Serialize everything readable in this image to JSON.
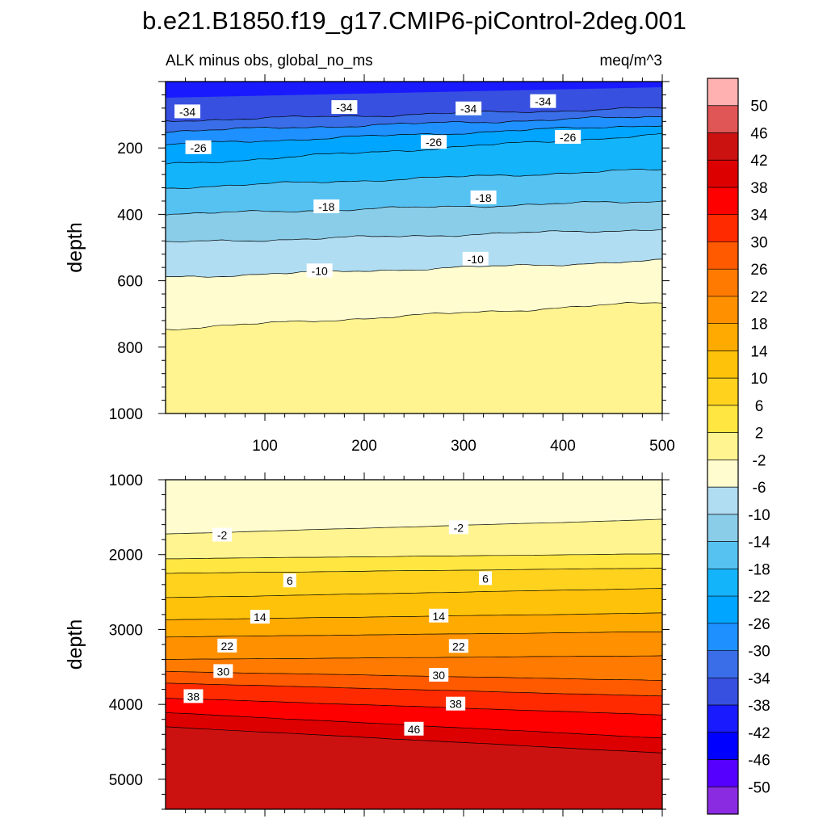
{
  "chart_data": {
    "type": "heatmap",
    "title": "b.e21.B1850.f19_g17.CMIP6-piControl-2deg.001",
    "subtitle_left": "ALK minus obs, global_no_ms",
    "subtitle_right": "meq/m^3",
    "x_range": [
      0,
      500
    ],
    "x_ticks": [
      "100",
      "200",
      "300",
      "400",
      "500"
    ],
    "colorbar": {
      "levels": [
        -50,
        -46,
        -42,
        -38,
        -34,
        -30,
        -26,
        -22,
        -18,
        -14,
        -10,
        -6,
        -2,
        2,
        6,
        10,
        14,
        18,
        22,
        26,
        30,
        34,
        38,
        42,
        46,
        50
      ],
      "labels": [
        "50",
        "46",
        "42",
        "38",
        "34",
        "30",
        "26",
        "22",
        "18",
        "14",
        "10",
        "6",
        "2",
        "-2",
        "-6",
        "-10",
        "-14",
        "-18",
        "-22",
        "-26",
        "-30",
        "-34",
        "-38",
        "-42",
        "-46",
        "-50"
      ],
      "colors": [
        "#8a2be2",
        "#5500ff",
        "#0000ff",
        "#1a1aff",
        "#3750e0",
        "#3a6ee8",
        "#1e90ff",
        "#00a5ff",
        "#14b4fa",
        "#56c2f2",
        "#8acde9",
        "#b0ddf2",
        "#fffdd0",
        "#fff48f",
        "#ffe640",
        "#ffd21e",
        "#ffc20a",
        "#ffaa00",
        "#ff9100",
        "#ff7a00",
        "#ff5a00",
        "#ff2a00",
        "#ff0000",
        "#dd0000",
        "#cc1111",
        "#e05555",
        "#ffb0b0"
      ]
    },
    "panels": [
      {
        "name": "upper",
        "ylabel": "depth",
        "y_range": [
          0,
          1000
        ],
        "y_ticks": [
          "200",
          "400",
          "600",
          "800",
          "1000"
        ],
        "contours": [
          {
            "level": -34,
            "depth_at_0": 118,
            "depth_at_500": 80
          },
          {
            "level": -30,
            "depth_at_0": 150,
            "depth_at_500": 105
          },
          {
            "level": -26,
            "depth_at_0": 190,
            "depth_at_500": 130
          },
          {
            "level": -22,
            "depth_at_0": 250,
            "depth_at_500": 160
          },
          {
            "level": -18,
            "depth_at_0": 320,
            "depth_at_500": 265
          },
          {
            "level": -14,
            "depth_at_0": 400,
            "depth_at_500": 360
          },
          {
            "level": -10,
            "depth_at_0": 485,
            "depth_at_500": 445
          },
          {
            "level": -6,
            "depth_at_0": 590,
            "depth_at_500": 540
          },
          {
            "level": -2,
            "depth_at_0": 745,
            "depth_at_500": 665
          }
        ],
        "contour_labels": [
          {
            "text": "-34",
            "x": 22,
            "depth": 91
          },
          {
            "text": "-34",
            "x": 180,
            "depth": 78
          },
          {
            "text": "-34",
            "x": 305,
            "depth": 82
          },
          {
            "text": "-34",
            "x": 380,
            "depth": 60
          },
          {
            "text": "-26",
            "x": 33,
            "depth": 199
          },
          {
            "text": "-26",
            "x": 270,
            "depth": 183
          },
          {
            "text": "-26",
            "x": 405,
            "depth": 168
          },
          {
            "text": "-18",
            "x": 162,
            "depth": 377
          },
          {
            "text": "-18",
            "x": 320,
            "depth": 350
          },
          {
            "text": "-10",
            "x": 155,
            "depth": 570
          },
          {
            "text": "-10",
            "x": 312,
            "depth": 535
          }
        ]
      },
      {
        "name": "lower",
        "ylabel": "depth",
        "y_range": [
          1000,
          5400
        ],
        "y_ticks": [
          "1000",
          "2000",
          "3000",
          "4000",
          "5000"
        ],
        "contours": [
          {
            "level": -2,
            "depth_at_0": 1725,
            "depth_at_500": 1530
          },
          {
            "level": 2,
            "depth_at_0": 2055,
            "depth_at_500": 1990
          },
          {
            "level": 6,
            "depth_at_0": 2250,
            "depth_at_500": 2180
          },
          {
            "level": 10,
            "depth_at_0": 2575,
            "depth_at_500": 2450
          },
          {
            "level": 14,
            "depth_at_0": 2870,
            "depth_at_500": 2780
          },
          {
            "level": 18,
            "depth_at_0": 3100,
            "depth_at_500": 3030
          },
          {
            "level": 22,
            "depth_at_0": 3400,
            "depth_at_500": 3350
          },
          {
            "level": 26,
            "depth_at_0": 3560,
            "depth_at_500": 3680
          },
          {
            "level": 30,
            "depth_at_0": 3715,
            "depth_at_500": 3890
          },
          {
            "level": 34,
            "depth_at_0": 3915,
            "depth_at_500": 4140
          },
          {
            "level": 38,
            "depth_at_0": 4110,
            "depth_at_500": 4450
          },
          {
            "level": 42,
            "depth_at_0": 4300,
            "depth_at_500": 4650
          }
        ],
        "contour_labels": [
          {
            "text": "-2",
            "x": 57,
            "depth": 1740
          },
          {
            "text": "-2",
            "x": 295,
            "depth": 1640
          },
          {
            "text": "6",
            "x": 125,
            "depth": 2350
          },
          {
            "text": "6",
            "x": 322,
            "depth": 2320
          },
          {
            "text": "14",
            "x": 95,
            "depth": 2835
          },
          {
            "text": "14",
            "x": 275,
            "depth": 2820
          },
          {
            "text": "22",
            "x": 62,
            "depth": 3220
          },
          {
            "text": "22",
            "x": 295,
            "depth": 3225
          },
          {
            "text": "30",
            "x": 58,
            "depth": 3560
          },
          {
            "text": "30",
            "x": 275,
            "depth": 3610
          },
          {
            "text": "38",
            "x": 28,
            "depth": 3895
          },
          {
            "text": "38",
            "x": 292,
            "depth": 3995
          },
          {
            "text": "46",
            "x": 250,
            "depth": 4330
          }
        ]
      }
    ]
  }
}
